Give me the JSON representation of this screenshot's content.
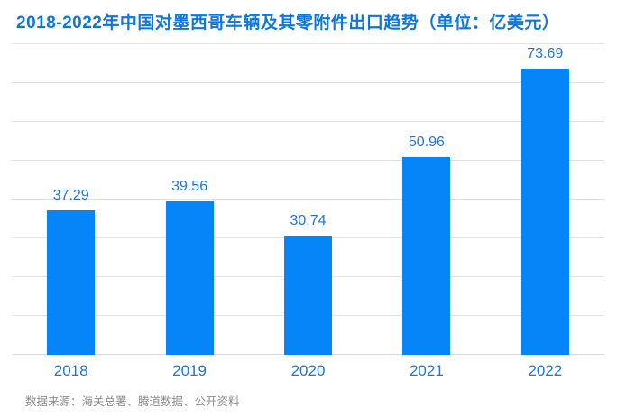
{
  "title": "2018-2022年中国对墨西哥车辆及其零附件出口趋势（单位：亿美元）",
  "source": "数据来源：海关总署、腾道数据、公开资料",
  "colors": {
    "title": "#0d76dd",
    "bar": "#0585f8",
    "label": "#1b77dc",
    "gridline": "#e2e2e2",
    "axis": "#d8d8d8",
    "source_text": "#8a8a8a",
    "background": "#ffffff"
  },
  "chart_data": {
    "type": "bar",
    "categories": [
      "2018",
      "2019",
      "2020",
      "2021",
      "2022"
    ],
    "values": [
      37.29,
      39.56,
      30.74,
      50.96,
      73.69
    ],
    "data_labels": [
      "37.29",
      "39.56",
      "30.74",
      "50.96",
      "73.69"
    ],
    "title": "2018-2022年中国对墨西哥车辆及其零附件出口趋势",
    "unit": "亿美元",
    "xlabel": "",
    "ylabel": "",
    "ylim": [
      0,
      80
    ],
    "gridline_interval": 10,
    "grid": true,
    "legend_position": "none",
    "bar_color": "#0585f8"
  }
}
